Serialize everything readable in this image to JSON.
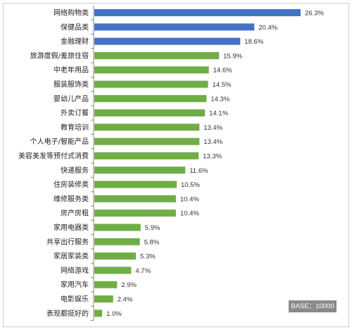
{
  "chart_data": {
    "type": "bar",
    "orientation": "horizontal",
    "categories": [
      "网络购物类",
      "保健品类",
      "金融理财",
      "旅游度假/差旅住宿",
      "中老年用品",
      "服装服饰类",
      "婴幼儿产品",
      "外卖订餐",
      "教育培训",
      "个人电子/智能产品",
      "美容美发等预付式消费",
      "快递服务",
      "住房装修类",
      "维修服务类",
      "房产房租",
      "家用电器类",
      "共享出行服务",
      "家居家装类",
      "网络游戏",
      "家用汽车",
      "电影娱乐",
      "表现都挺好的"
    ],
    "values": [
      26.3,
      20.4,
      18.6,
      15.9,
      14.6,
      14.5,
      14.3,
      14.1,
      13.4,
      13.4,
      13.3,
      11.6,
      10.5,
      10.4,
      10.4,
      5.9,
      5.8,
      5.3,
      4.7,
      2.9,
      2.4,
      1.0
    ],
    "value_labels": [
      "26.3%",
      "20.4%",
      "18.6%",
      "15.9%",
      "14.6%",
      "14.5%",
      "14.3%",
      "14.1%",
      "13.4%",
      "13.4%",
      "13.3%",
      "11.6%",
      "10.5%",
      "10.4%",
      "10.4%",
      "5.9%",
      "5.8%",
      "5.3%",
      "4.7%",
      "2.9%",
      "2.4%",
      "1.0%"
    ],
    "xlim": [
      0,
      26.3
    ],
    "highlight_count": 3,
    "colors": {
      "highlight": "#4472c4",
      "default": "#70ad47",
      "axis": "#888888"
    },
    "grid": false,
    "legend": "none"
  },
  "base_label": "BASE：10000"
}
